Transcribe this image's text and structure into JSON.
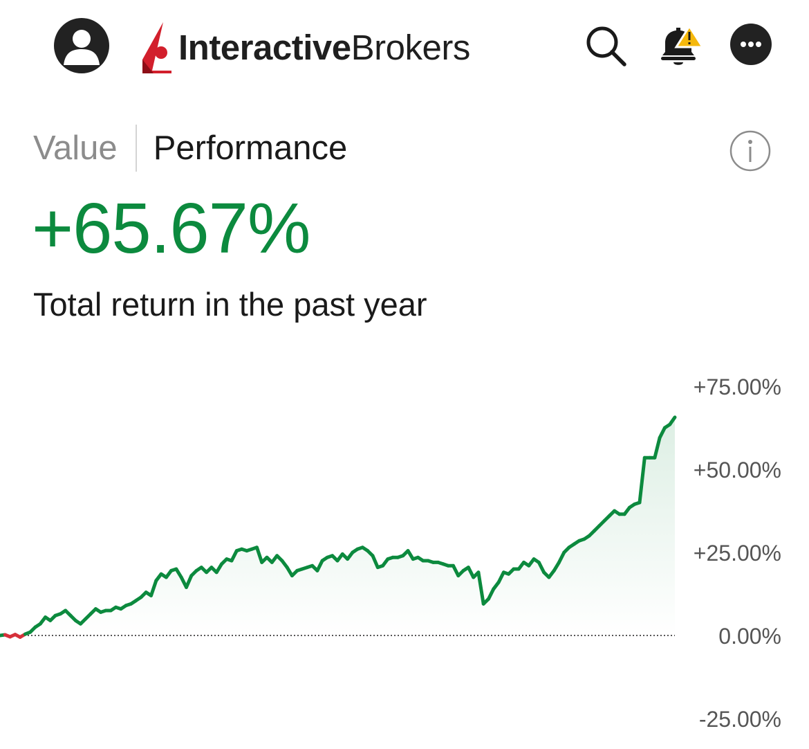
{
  "header": {
    "brand_bold": "Interactive",
    "brand_regular": "Brokers",
    "icons": {
      "avatar": "user-avatar-icon",
      "search": "search-icon",
      "notifications": "bell-warning-icon",
      "more": "more-icon"
    }
  },
  "tabs": [
    {
      "label": "Value",
      "active": false
    },
    {
      "label": "Performance",
      "active": true
    }
  ],
  "performance": {
    "total_return": "+65.67%",
    "caption": "Total return in the past year"
  },
  "colors": {
    "positive": "#0c8a3e",
    "negative": "#d6303a",
    "brand_red": "#d21f2c"
  },
  "chart_data": {
    "type": "line",
    "title": "",
    "xlabel": "",
    "ylabel": "",
    "ylim": [
      -25,
      75
    ],
    "y_ticks": [
      "+75.00%",
      "+50.00%",
      "+25.00%",
      "0.00%",
      "-25.00%"
    ],
    "y_tick_values": [
      75,
      50,
      25,
      0,
      -25
    ],
    "baseline": 0,
    "grid": false,
    "series": [
      {
        "values": [
          0,
          0.2,
          -0.4,
          0.3,
          -0.5,
          0.4,
          1,
          2.5,
          3.5,
          5.5,
          4.5,
          6,
          6.5,
          7.5,
          6,
          4.5,
          3.5,
          5,
          6.5,
          8,
          7,
          7.5,
          7.5,
          8.5,
          8,
          9,
          9.5,
          10.5,
          11.5,
          13,
          12,
          16.5,
          18.5,
          17.5,
          19.5,
          20,
          17.5,
          14.5,
          18,
          19.5,
          20.5,
          19,
          20.5,
          19,
          21.5,
          23,
          22.5,
          25.5,
          26,
          25.5,
          26,
          26.5,
          22,
          23.5,
          22,
          24,
          22.5,
          20.5,
          18,
          19.5,
          20,
          20.5,
          21,
          19.5,
          22.5,
          23.5,
          24,
          22.5,
          24.5,
          23,
          25,
          26,
          26.5,
          25.5,
          24,
          20.5,
          21,
          23,
          23.5,
          23.5,
          24,
          25.5,
          23,
          23.5,
          22.5,
          22.5,
          22,
          22,
          21.5,
          21,
          21,
          18,
          19.5,
          20.5,
          17.5,
          19,
          9.5,
          11,
          14,
          16,
          19,
          18.5,
          20,
          20,
          22,
          21,
          23,
          22,
          19,
          17.5,
          19.5,
          22,
          25,
          26.5,
          27.5,
          28.5,
          29,
          30,
          31.5,
          33,
          34.5,
          36,
          37.5,
          36.5,
          36.5,
          38.5,
          39.5,
          40,
          53.5,
          53.5,
          53.5,
          59.5,
          62.5,
          63.5,
          65.67
        ]
      }
    ]
  }
}
